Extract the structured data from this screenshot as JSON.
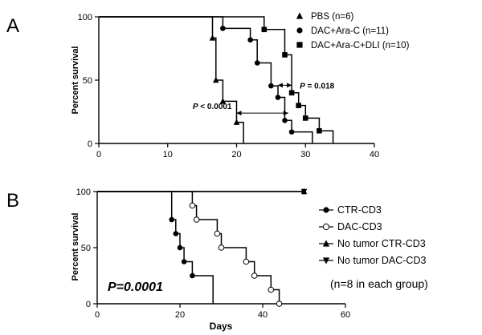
{
  "chart_data": [
    {
      "type": "line",
      "panel_label": "A",
      "title": "",
      "xlabel": "",
      "ylabel": "Percent survival",
      "xlim": [
        0,
        40
      ],
      "ylim": [
        0,
        100
      ],
      "xticks": [
        0,
        10,
        20,
        30,
        40
      ],
      "yticks": [
        0,
        50,
        100
      ],
      "xtick_labels": [
        "0",
        "10",
        "20",
        "30",
        "40"
      ],
      "ytick_labels": [
        "0",
        "50",
        "100"
      ],
      "legend_position": "top-right",
      "series": [
        {
          "name": "PBS (n=6)",
          "marker": "triangle-up",
          "steps": [
            [
              0,
              100
            ],
            [
              16.5,
              100
            ],
            [
              16.5,
              83.3
            ],
            [
              17,
              83.3
            ],
            [
              17,
              50
            ],
            [
              18,
              50
            ],
            [
              18,
              33.3
            ],
            [
              20,
              33.3
            ],
            [
              20,
              16.7
            ],
            [
              21,
              16.7
            ],
            [
              21,
              0
            ]
          ],
          "markers": [
            [
              16.5,
              83.3
            ],
            [
              17,
              50
            ],
            [
              18,
              33.3
            ],
            [
              20,
              16.7
            ]
          ]
        },
        {
          "name": "DAC+Ara-C (n=11)",
          "marker": "circle",
          "steps": [
            [
              0,
              100
            ],
            [
              18,
              100
            ],
            [
              18,
              90.9
            ],
            [
              22,
              90.9
            ],
            [
              22,
              81.8
            ],
            [
              23,
              81.8
            ],
            [
              23,
              63.6
            ],
            [
              25,
              63.6
            ],
            [
              25,
              45.5
            ],
            [
              26,
              45.5
            ],
            [
              26,
              36.4
            ],
            [
              27,
              36.4
            ],
            [
              27,
              18.2
            ],
            [
              28,
              18.2
            ],
            [
              28,
              9.1
            ],
            [
              31,
              9.1
            ],
            [
              31,
              0
            ]
          ],
          "markers": [
            [
              18,
              90.9
            ],
            [
              22,
              81.8
            ],
            [
              23,
              63.6
            ],
            [
              25,
              45.5
            ],
            [
              26,
              36.4
            ],
            [
              27,
              18.2
            ],
            [
              28,
              9.1
            ]
          ]
        },
        {
          "name": "DAC+Ara-C+DLI (n=10)",
          "marker": "square",
          "steps": [
            [
              0,
              100
            ],
            [
              24,
              100
            ],
            [
              24,
              90
            ],
            [
              27,
              90
            ],
            [
              27,
              70
            ],
            [
              28,
              70
            ],
            [
              28,
              40
            ],
            [
              29,
              40
            ],
            [
              29,
              30
            ],
            [
              30,
              30
            ],
            [
              30,
              20
            ],
            [
              32,
              20
            ],
            [
              32,
              10
            ],
            [
              34,
              10
            ],
            [
              34,
              0
            ]
          ],
          "markers": [
            [
              24,
              90
            ],
            [
              27,
              70
            ],
            [
              28,
              40
            ],
            [
              29,
              30
            ],
            [
              30,
              20
            ],
            [
              32,
              10
            ]
          ]
        }
      ],
      "annotations": [
        {
          "text_italic": "P",
          "text_rest": " = 0.018",
          "arrow_from_x": 26,
          "arrow_to_x": 28,
          "arrow_y": 46
        },
        {
          "text_italic": "P",
          "text_rest": " < 0.0001",
          "arrow_from_x": 20,
          "arrow_to_x": 27.5,
          "arrow_y": 24
        }
      ]
    },
    {
      "type": "line",
      "panel_label": "B",
      "title": "",
      "xlabel": "Days",
      "ylabel": "Percent survival",
      "xlim": [
        0,
        60
      ],
      "ylim": [
        0,
        100
      ],
      "xticks": [
        0,
        20,
        40,
        60
      ],
      "yticks": [
        0,
        50,
        100
      ],
      "xtick_labels": [
        "0",
        "20",
        "40",
        "60"
      ],
      "ytick_labels": [
        "0",
        "50",
        "100"
      ],
      "legend_position": "right",
      "series": [
        {
          "name": "CTR-CD3",
          "marker": "circle-filled",
          "steps": [
            [
              0,
              100
            ],
            [
              18,
              100
            ],
            [
              18,
              75
            ],
            [
              19,
              75
            ],
            [
              19,
              62.5
            ],
            [
              20,
              62.5
            ],
            [
              20,
              50
            ],
            [
              21,
              50
            ],
            [
              21,
              37.5
            ],
            [
              23,
              37.5
            ],
            [
              23,
              25
            ],
            [
              28,
              25
            ],
            [
              28,
              0
            ]
          ],
          "markers": [
            [
              18,
              75
            ],
            [
              19,
              62.5
            ],
            [
              20,
              50
            ],
            [
              21,
              37.5
            ],
            [
              23,
              25
            ]
          ]
        },
        {
          "name": "DAC-CD3",
          "marker": "circle-open",
          "steps": [
            [
              0,
              100
            ],
            [
              23,
              100
            ],
            [
              23,
              87.5
            ],
            [
              24,
              87.5
            ],
            [
              24,
              75
            ],
            [
              29,
              75
            ],
            [
              29,
              62.5
            ],
            [
              30,
              62.5
            ],
            [
              30,
              50
            ],
            [
              36,
              50
            ],
            [
              36,
              37.5
            ],
            [
              38,
              37.5
            ],
            [
              38,
              25
            ],
            [
              42,
              25
            ],
            [
              42,
              12.5
            ],
            [
              44,
              12.5
            ],
            [
              44,
              0
            ]
          ],
          "markers": [
            [
              23,
              87.5
            ],
            [
              24,
              75
            ],
            [
              29,
              62.5
            ],
            [
              30,
              50
            ],
            [
              36,
              37.5
            ],
            [
              38,
              25
            ],
            [
              42,
              12.5
            ],
            [
              44,
              0
            ]
          ]
        },
        {
          "name": "No tumor CTR-CD3",
          "marker": "triangle-up",
          "steps": [
            [
              0,
              100
            ],
            [
              50,
              100
            ]
          ],
          "markers": [
            [
              50,
              100
            ]
          ]
        },
        {
          "name": "No tumor DAC-CD3",
          "marker": "triangle-down",
          "steps": [
            [
              0,
              100
            ],
            [
              50,
              100
            ]
          ],
          "markers": [
            [
              50,
              100
            ]
          ]
        }
      ],
      "annotations": [
        {
          "text": "P=0.0001"
        },
        {
          "text": "(n=8 in each group)"
        }
      ]
    }
  ]
}
